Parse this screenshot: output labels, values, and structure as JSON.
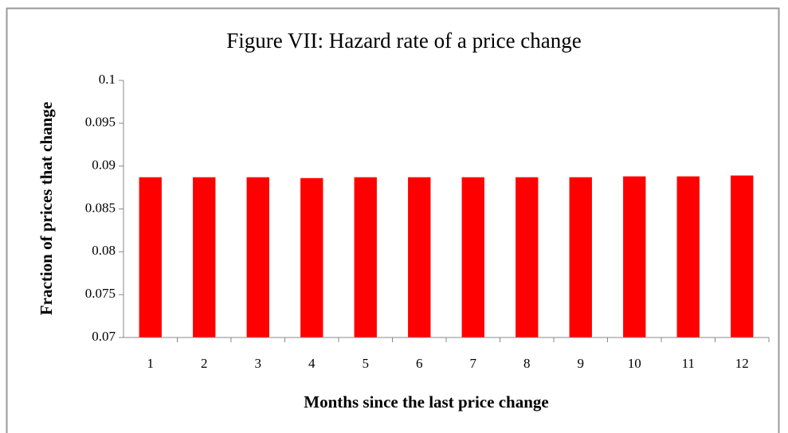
{
  "chart_data": {
    "type": "bar",
    "title": "Figure VII: Hazard rate of a price change",
    "x_label": "Months since the last price change",
    "y_label": "Fraction of prices that change",
    "categories": [
      "1",
      "2",
      "3",
      "4",
      "5",
      "6",
      "7",
      "8",
      "9",
      "10",
      "11",
      "12"
    ],
    "values": [
      0.0887,
      0.0887,
      0.0887,
      0.0886,
      0.0887,
      0.0887,
      0.0887,
      0.0887,
      0.0887,
      0.0888,
      0.0888,
      0.0889
    ],
    "color": "#ff0000",
    "ylim": [
      0.07,
      0.1
    ],
    "yticks": [
      0.07,
      0.075,
      0.08,
      0.085,
      0.09,
      0.095,
      0.1
    ],
    "grid": false
  }
}
